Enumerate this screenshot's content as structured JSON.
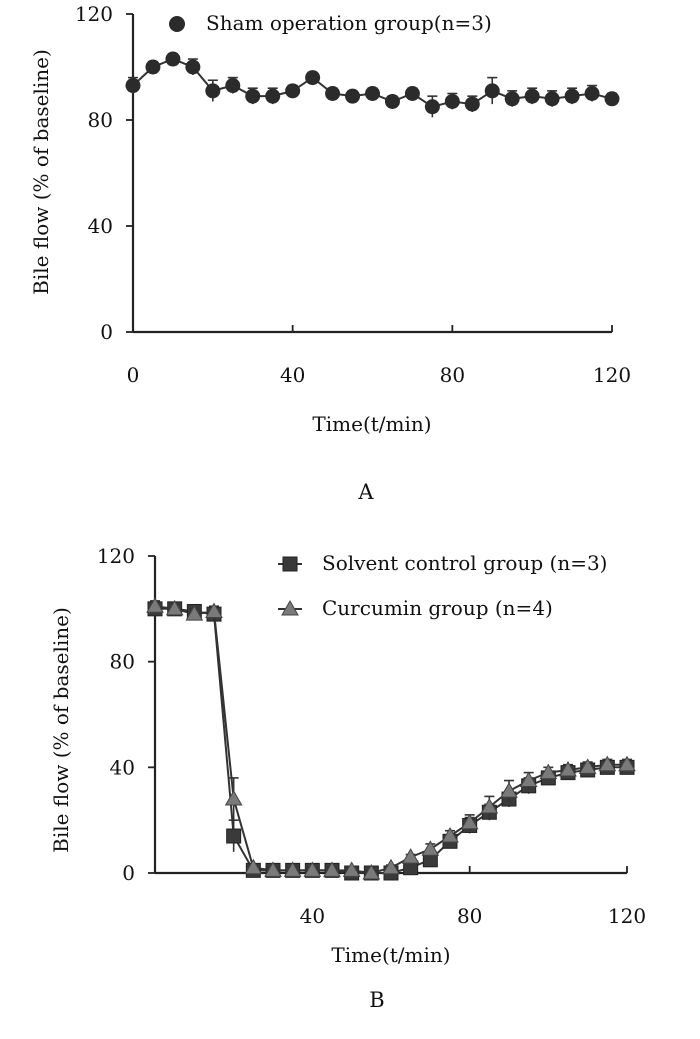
{
  "chart_data": [
    {
      "type": "line",
      "panel_label": "A",
      "xlabel": "Time(t/min)",
      "ylabel": "Bile flow (% of baseline)",
      "xlim": [
        0,
        120
      ],
      "ylim": [
        0,
        120
      ],
      "xticks": [
        "0",
        "40",
        "80",
        "120"
      ],
      "yticks": [
        "0",
        "40",
        "80",
        "120"
      ],
      "legend_position": "top",
      "series": [
        {
          "name": "Sham operation group(n=3)",
          "marker": "circle",
          "color": "#2b2b2b",
          "x": [
            0,
            5,
            10,
            15,
            20,
            25,
            30,
            35,
            40,
            45,
            50,
            55,
            60,
            65,
            70,
            75,
            80,
            85,
            90,
            95,
            100,
            105,
            110,
            115,
            120
          ],
          "values": [
            93,
            100,
            103,
            100,
            91,
            93,
            89,
            89,
            91,
            96,
            90,
            89,
            90,
            87,
            90,
            85,
            87,
            86,
            91,
            88,
            89,
            88,
            89,
            90,
            88
          ],
          "err": [
            3,
            2,
            2,
            3,
            4,
            3,
            3,
            3,
            2,
            2,
            2,
            2,
            2,
            2,
            2,
            4,
            3,
            3,
            5,
            3,
            3,
            3,
            3,
            3,
            2
          ]
        }
      ]
    },
    {
      "type": "line",
      "panel_label": "B",
      "xlabel": "Time(t/min)",
      "ylabel": "Bile flow (% of baseline)",
      "xlim": [
        0,
        120
      ],
      "ylim": [
        0,
        120
      ],
      "xticks": [
        "40",
        "80",
        "120"
      ],
      "yticks": [
        "0",
        "40",
        "80",
        "120"
      ],
      "legend_position": "top-right",
      "series": [
        {
          "name": "Solvent control group (n=3)",
          "marker": "square",
          "color": "#3a3a3a",
          "x": [
            0,
            5,
            10,
            15,
            20,
            25,
            30,
            35,
            40,
            45,
            50,
            55,
            60,
            65,
            70,
            75,
            80,
            85,
            90,
            95,
            100,
            105,
            110,
            115,
            120
          ],
          "values": [
            100,
            100,
            99,
            98,
            14,
            1,
            1,
            1,
            1,
            1,
            0,
            0,
            0,
            2,
            5,
            12,
            18,
            23,
            28,
            33,
            36,
            38,
            39,
            40,
            40
          ],
          "err": [
            2,
            2,
            2,
            2,
            6,
            1,
            1,
            1,
            1,
            1,
            1,
            1,
            1,
            1,
            2,
            2,
            3,
            3,
            3,
            3,
            2,
            2,
            2,
            2,
            2
          ]
        },
        {
          "name": "Curcumin group (n=4)",
          "marker": "triangle",
          "color": "#7a7a7a",
          "x": [
            0,
            5,
            10,
            15,
            20,
            25,
            30,
            35,
            40,
            45,
            50,
            55,
            60,
            65,
            70,
            75,
            80,
            85,
            90,
            95,
            100,
            105,
            110,
            115,
            120
          ],
          "values": [
            101,
            100,
            98,
            99,
            28,
            2,
            1,
            1,
            1,
            1,
            1,
            0,
            2,
            6,
            9,
            14,
            19,
            25,
            31,
            35,
            38,
            39,
            40,
            41,
            41
          ],
          "err": [
            2,
            2,
            2,
            2,
            8,
            1,
            1,
            1,
            1,
            1,
            1,
            1,
            1,
            1,
            2,
            2,
            3,
            4,
            4,
            3,
            2,
            2,
            2,
            2,
            2
          ]
        }
      ]
    }
  ]
}
